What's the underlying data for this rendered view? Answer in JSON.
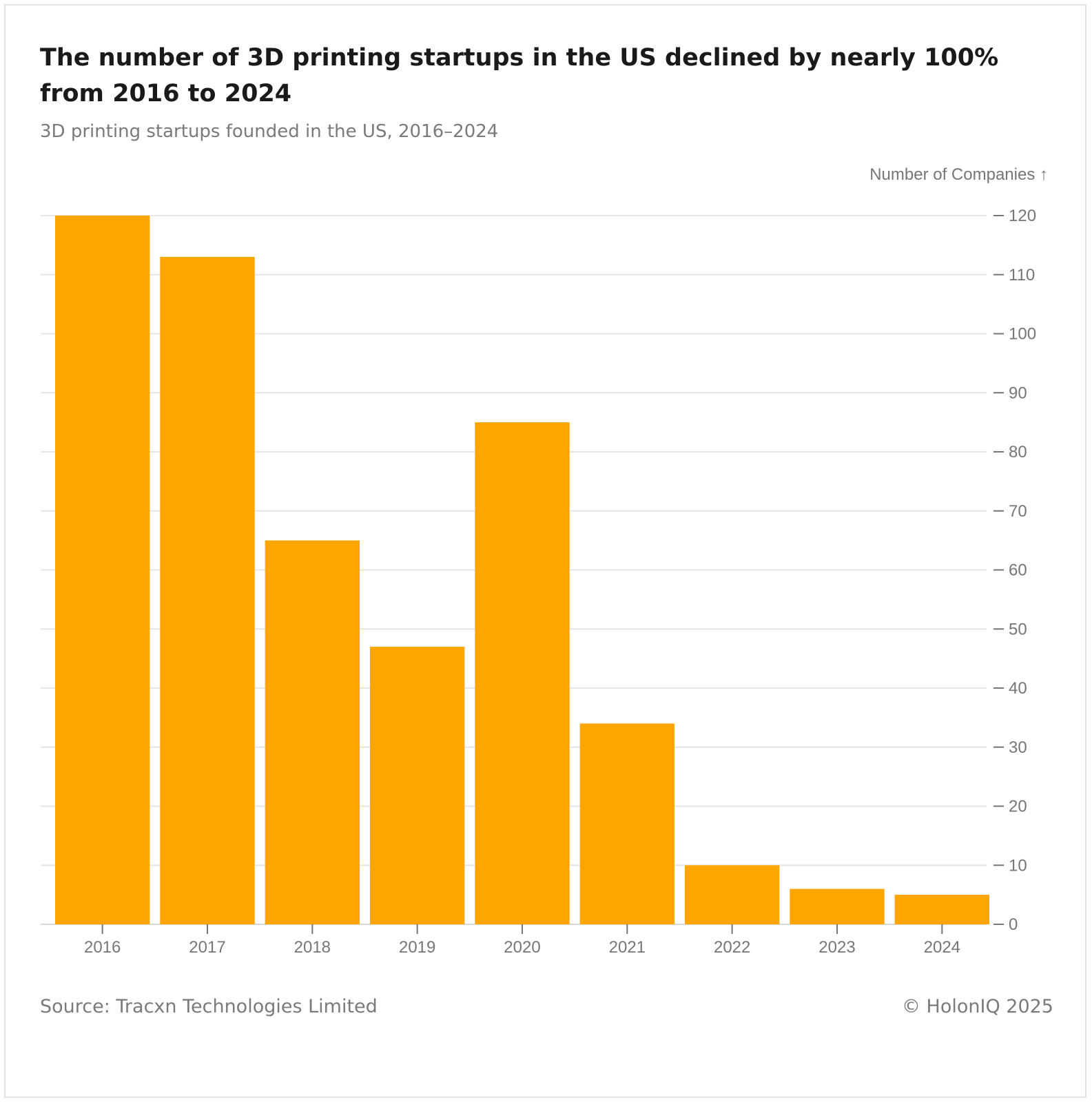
{
  "chart_data": {
    "type": "bar",
    "title": "The number of 3D printing startups in the US declined by nearly 100% from 2016 to 2024",
    "subtitle": "3D printing startups founded in the US, 2016–2024",
    "xlabel": "",
    "ylabel": "Number of Companies ↑",
    "categories": [
      "2016",
      "2017",
      "2018",
      "2019",
      "2020",
      "2021",
      "2022",
      "2023",
      "2024"
    ],
    "values": [
      120,
      113,
      65,
      47,
      85,
      34,
      10,
      6,
      5
    ],
    "ylim": [
      0,
      120
    ],
    "yticks": [
      0,
      10,
      20,
      30,
      40,
      50,
      60,
      70,
      80,
      90,
      100,
      110,
      120
    ],
    "y_axis_position": "right",
    "grid": true,
    "bar_color": "#FFA500"
  },
  "footer": {
    "source": "Source: Tracxn Technologies Limited",
    "copyright": "© HolonIQ 2025"
  }
}
